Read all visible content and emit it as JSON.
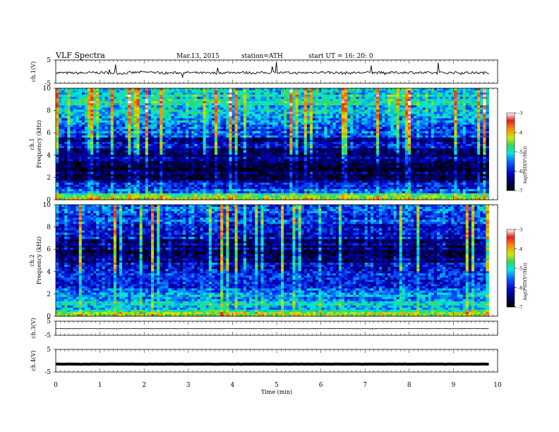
{
  "header": {
    "title": "VLF  Spectra",
    "date": "Mar.13, 2015",
    "station": "station=ATH",
    "start": "start  UT =    16: 20: 0"
  },
  "chart_data": [
    {
      "type": "line",
      "panel": "ch1-waveform",
      "ylabel": "ch.1(V)",
      "ylim": [
        -5,
        5
      ],
      "yticks": [
        "5",
        "-5"
      ],
      "xlim": [
        0,
        10
      ],
      "x": [
        0,
        0.5,
        1,
        1.5,
        2,
        2.5,
        3,
        3.5,
        4,
        4.5,
        5,
        5.5,
        6,
        6.5,
        7,
        7.5,
        8,
        8.5,
        9,
        9.5,
        9.8
      ],
      "y": [
        -0.5,
        -0.6,
        -0.4,
        -0.7,
        -0.2,
        -0.6,
        -0.4,
        -0.7,
        -0.3,
        -0.5,
        -0.4,
        -0.6,
        -0.2,
        -0.6,
        -0.4,
        -0.5,
        -0.3,
        -0.6,
        -0.4,
        -0.5,
        -0.5
      ],
      "color": "#000000"
    },
    {
      "type": "heatmap",
      "panel": "ch1-spectrogram",
      "ylabel": "ch.1\nFrequency (kHz)",
      "ylim": [
        0,
        10
      ],
      "yticks": [
        "0",
        "2",
        "4",
        "6",
        "8",
        "10"
      ],
      "xlim": [
        0,
        10
      ],
      "data_end_x": 9.8,
      "freq_bands_khz": [
        0,
        0.6,
        1.5,
        2.5,
        3.5,
        5.5,
        7,
        8.5,
        10
      ],
      "logPSD_profile": [
        -4.3,
        -5.6,
        -6.4,
        -6.8,
        -6.5,
        -5.9,
        -5.5,
        -5.2
      ],
      "colorbar": {
        "label": "log(PSD(V²/Hz))",
        "range": [
          -7,
          -3
        ],
        "ticks": [
          "-3",
          "-4",
          "-5",
          "-6",
          "-7"
        ]
      }
    },
    {
      "type": "heatmap",
      "panel": "ch2-spectrogram",
      "ylabel": "ch.2\nFrequency (kHz)",
      "ylim": [
        0,
        10
      ],
      "yticks": [
        "0",
        "2",
        "4",
        "6",
        "8",
        "10"
      ],
      "xlim": [
        0,
        10
      ],
      "data_end_x": 9.8,
      "freq_bands_khz": [
        0,
        0.6,
        1.5,
        2.5,
        3.5,
        4.5,
        5.5,
        7,
        8.5,
        10
      ],
      "logPSD_profile": [
        -4.6,
        -5.2,
        -5.5,
        -5.8,
        -5.9,
        -6.3,
        -6.6,
        -6.2,
        -5.8
      ],
      "colorbar": {
        "label": "log(PSD(V²/Hz))",
        "range": [
          -7,
          -3
        ],
        "ticks": [
          "-3",
          "-4",
          "-5",
          "-6",
          "-7"
        ]
      }
    },
    {
      "type": "line",
      "panel": "ch3-waveform",
      "ylabel": "ch.3(V)",
      "ylim": [
        -5,
        5
      ],
      "yticks": [
        "5",
        "-5"
      ],
      "xlim": [
        0,
        10
      ],
      "x": [
        0,
        9.8
      ],
      "y": [
        -0.3,
        -0.3
      ],
      "color": "#000000"
    },
    {
      "type": "line",
      "panel": "ch4-waveform",
      "ylabel": "ch.4(V)",
      "ylim": [
        -5,
        5
      ],
      "yticks": [
        "5",
        "-5"
      ],
      "xlim": [
        0,
        10
      ],
      "x": [
        0,
        9.8
      ],
      "y": [
        -1.5,
        -1.5
      ],
      "color": "#000000"
    }
  ],
  "xaxis": {
    "label": "Time  (min)",
    "ticks": [
      "0",
      "1",
      "2",
      "3",
      "4",
      "5",
      "6",
      "7",
      "8",
      "9",
      "10"
    ]
  },
  "colorscale": [
    "#000000",
    "#000050",
    "#0000c8",
    "#0a5aff",
    "#00e8e8",
    "#30d860",
    "#cce800",
    "#ff8800",
    "#e02020",
    "#ffffff"
  ]
}
